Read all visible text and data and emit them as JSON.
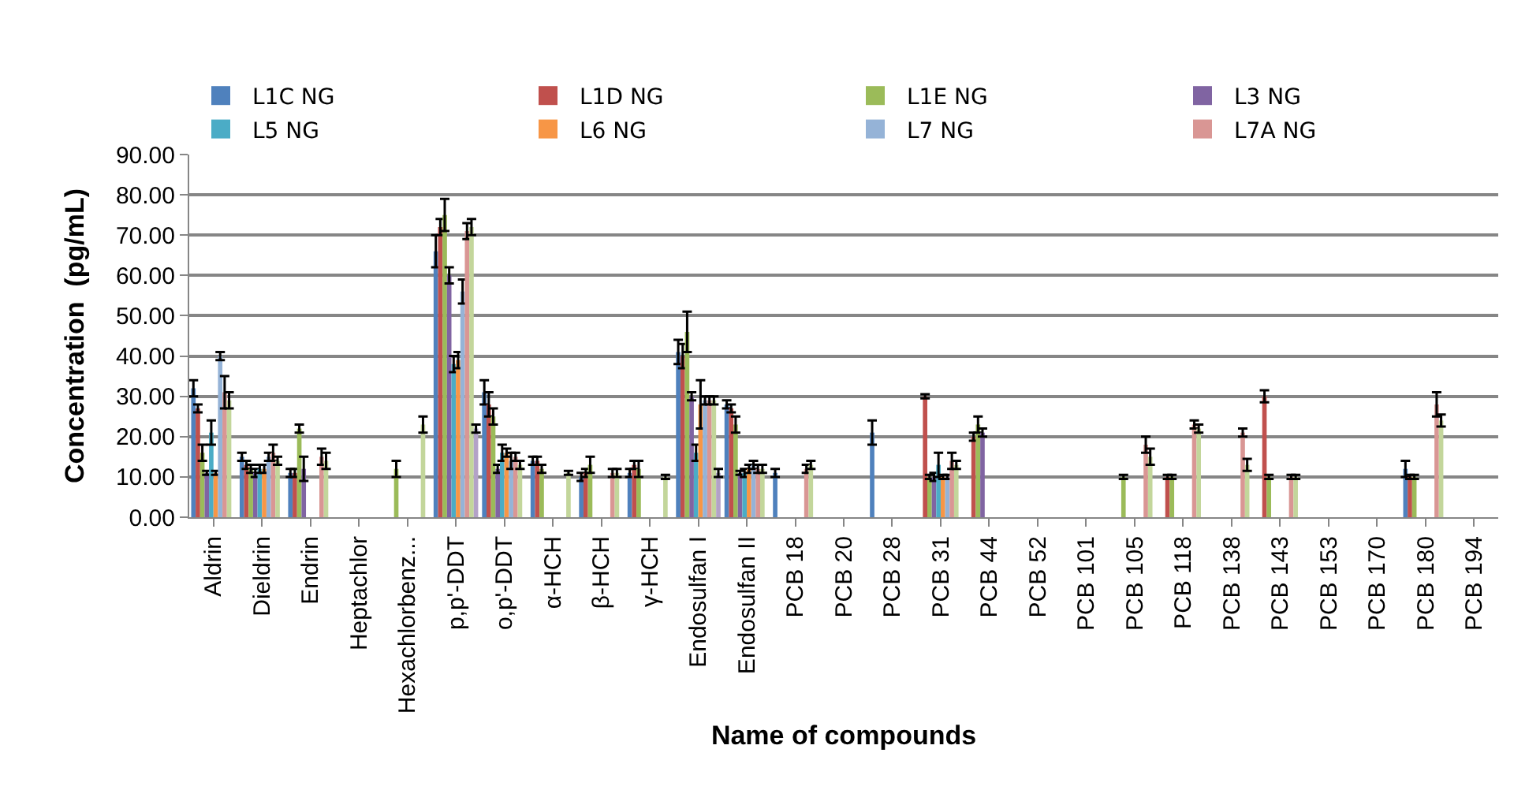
{
  "chart_data": {
    "type": "bar",
    "xlabel": "Name of compounds",
    "ylabel": "Concentration  (pg/mL)",
    "categories": [
      "Aldrin",
      "Dieldrin",
      "Endrin",
      "Heptachlor",
      "Hexachlorbenz...",
      "p,p'-DDT",
      "o,p'-DDT",
      "α-HCH",
      "β-HCH",
      "γ-HCH",
      "Endosulfan I",
      "Endosulfan II",
      "PCB 18",
      "PCB 20",
      "PCB 28",
      "PCB 31",
      "PCB 44",
      "PCB 52",
      "PCB 101",
      "PCB 105",
      "PCB 118",
      "PCB 138",
      "PCB 143",
      "PCB 153",
      "PCB 170",
      "PCB 180",
      "PCB 194"
    ],
    "ylim": [
      0,
      90
    ],
    "yticks": [
      {
        "value": 0,
        "label": "0.00"
      },
      {
        "value": 10,
        "label": "10.00"
      },
      {
        "value": 20,
        "label": "20.00"
      },
      {
        "value": 30,
        "label": "30.00"
      },
      {
        "value": 40,
        "label": "40.00"
      },
      {
        "value": 50,
        "label": "50.00"
      },
      {
        "value": 60,
        "label": "60.00"
      },
      {
        "value": 70,
        "label": "70.00"
      },
      {
        "value": 80,
        "label": "80.00"
      },
      {
        "value": 90,
        "label": "90.00"
      }
    ],
    "grid": "y",
    "legend": "top",
    "series": [
      {
        "name": "L1C NG",
        "color": "#4f81bd",
        "values": [
          32,
          15,
          11,
          null,
          null,
          66,
          31,
          14,
          10,
          11,
          41,
          28,
          11,
          null,
          21,
          null,
          null,
          null,
          null,
          null,
          null,
          null,
          null,
          null,
          null,
          12,
          null
        ],
        "errors": [
          2,
          1,
          1,
          null,
          null,
          4,
          3,
          1,
          1,
          1,
          3,
          1,
          1,
          null,
          3,
          null,
          null,
          null,
          null,
          null,
          null,
          null,
          null,
          null,
          null,
          2,
          null
        ]
      },
      {
        "name": "L1D NG",
        "color": "#c0504d",
        "values": [
          27,
          13,
          11,
          null,
          null,
          72,
          28,
          14,
          11,
          13,
          40,
          27,
          null,
          null,
          null,
          30,
          20,
          null,
          null,
          null,
          10,
          null,
          30,
          null,
          null,
          10,
          null
        ],
        "errors": [
          1,
          1,
          1,
          null,
          null,
          2,
          3,
          1,
          1,
          1,
          3,
          1,
          null,
          null,
          null,
          0.5,
          1,
          null,
          null,
          null,
          0.5,
          null,
          1.5,
          null,
          null,
          0.5,
          null
        ]
      },
      {
        "name": "L1E NG",
        "color": "#9bbb59",
        "values": [
          16,
          12,
          22,
          null,
          12,
          75,
          25,
          12,
          13,
          12,
          46,
          23,
          null,
          null,
          null,
          10,
          23,
          null,
          null,
          10,
          10,
          null,
          10,
          null,
          null,
          10,
          null
        ],
        "errors": [
          2,
          1,
          1,
          null,
          2,
          4,
          2,
          1,
          2,
          2,
          5,
          2,
          null,
          null,
          null,
          0.5,
          2,
          null,
          null,
          0.5,
          0.5,
          null,
          0.5,
          null,
          null,
          0.5,
          null
        ]
      },
      {
        "name": "L3 NG",
        "color": "#8064a2",
        "values": [
          11,
          11,
          12,
          null,
          null,
          60,
          12,
          null,
          null,
          null,
          30,
          11,
          null,
          null,
          null,
          10,
          21,
          null,
          null,
          null,
          null,
          null,
          null,
          null,
          null,
          null,
          null
        ],
        "errors": [
          0.5,
          1,
          3,
          null,
          null,
          2,
          1,
          null,
          null,
          null,
          1,
          0.5,
          null,
          null,
          null,
          1,
          1,
          null,
          null,
          null,
          null,
          null,
          null,
          null,
          null,
          null,
          null
        ]
      },
      {
        "name": "L5 NG",
        "color": "#4bacc6",
        "values": [
          21,
          12,
          null,
          null,
          null,
          38,
          16,
          null,
          null,
          null,
          16,
          11,
          null,
          null,
          null,
          13,
          null,
          null,
          null,
          null,
          null,
          null,
          null,
          null,
          null,
          null,
          null
        ],
        "errors": [
          3,
          1,
          null,
          null,
          null,
          2,
          2,
          null,
          null,
          null,
          2,
          1,
          null,
          null,
          null,
          3,
          null,
          null,
          null,
          null,
          null,
          null,
          null,
          null,
          null,
          null,
          null
        ]
      },
      {
        "name": "L6 NG",
        "color": "#f79646",
        "values": [
          11,
          12,
          null,
          null,
          null,
          39,
          16,
          null,
          null,
          null,
          28,
          12,
          null,
          null,
          null,
          10,
          null,
          null,
          null,
          null,
          null,
          null,
          null,
          null,
          null,
          null,
          null
        ],
        "errors": [
          0.5,
          1,
          null,
          null,
          null,
          2,
          1,
          null,
          null,
          null,
          6,
          1,
          null,
          null,
          null,
          0.5,
          null,
          null,
          null,
          null,
          null,
          null,
          null,
          null,
          null,
          null,
          null
        ]
      },
      {
        "name": "L7 NG",
        "color": "#95b3d7",
        "values": [
          40,
          15,
          null,
          null,
          null,
          56,
          14,
          null,
          null,
          null,
          29,
          13,
          null,
          null,
          null,
          10,
          null,
          null,
          null,
          null,
          null,
          null,
          null,
          null,
          null,
          null,
          null
        ],
        "errors": [
          1,
          1,
          null,
          null,
          null,
          3,
          2,
          null,
          null,
          null,
          1,
          1,
          null,
          null,
          null,
          0.5,
          null,
          null,
          null,
          null,
          null,
          null,
          null,
          null,
          null,
          null,
          null
        ]
      },
      {
        "name": "L7A NG",
        "color": "#d99694",
        "values": [
          31,
          16,
          15,
          null,
          null,
          71,
          15,
          null,
          11,
          null,
          29,
          12,
          12,
          null,
          null,
          14,
          null,
          null,
          null,
          18,
          23,
          21,
          10,
          null,
          null,
          28,
          null
        ],
        "errors": [
          4,
          2,
          2,
          null,
          null,
          2,
          1,
          null,
          1,
          null,
          1,
          1,
          1,
          null,
          null,
          2,
          null,
          null,
          null,
          2,
          1,
          1,
          0.5,
          null,
          null,
          3,
          null
        ]
      },
      {
        "color": "#c3d69b",
        "values": [
          29,
          14,
          14,
          null,
          23,
          72,
          13,
          11,
          11,
          10,
          29,
          12,
          13,
          null,
          null,
          13,
          null,
          null,
          null,
          15,
          22,
          13,
          10,
          null,
          null,
          24,
          null
        ],
        "errors": [
          2,
          1,
          2,
          null,
          2,
          2,
          1,
          0.5,
          1,
          0.5,
          1,
          1,
          1,
          null,
          null,
          1,
          null,
          null,
          null,
          2,
          1,
          1.5,
          0.5,
          null,
          null,
          1.5,
          null
        ]
      },
      {
        "color": "#b3a2c7",
        "values": [
          null,
          null,
          null,
          null,
          null,
          22,
          null,
          null,
          null,
          null,
          11,
          null,
          null,
          null,
          null,
          null,
          null,
          null,
          null,
          null,
          null,
          null,
          null,
          null,
          null,
          null,
          null
        ],
        "errors": [
          null,
          null,
          null,
          null,
          null,
          1,
          null,
          null,
          null,
          null,
          1,
          null,
          null,
          null,
          null,
          null,
          null,
          null,
          null,
          null,
          null,
          null,
          null,
          null,
          null,
          null,
          null
        ]
      }
    ]
  }
}
